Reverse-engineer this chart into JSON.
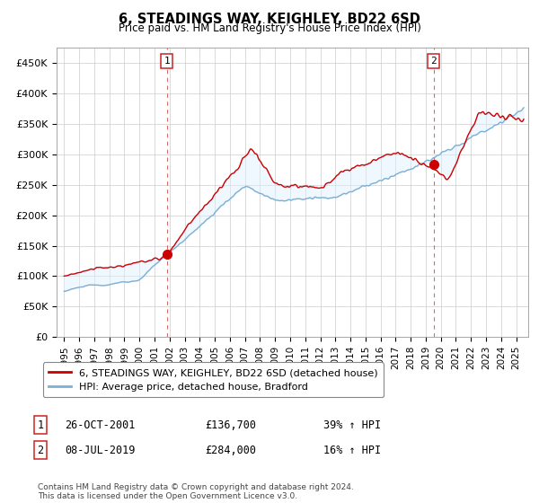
{
  "title": "6, STEADINGS WAY, KEIGHLEY, BD22 6SD",
  "subtitle": "Price paid vs. HM Land Registry's House Price Index (HPI)",
  "legend_line1": "6, STEADINGS WAY, KEIGHLEY, BD22 6SD (detached house)",
  "legend_line2": "HPI: Average price, detached house, Bradford",
  "annotation1_label": "1",
  "annotation1_date": "26-OCT-2001",
  "annotation1_price": "£136,700",
  "annotation1_hpi": "39% ↑ HPI",
  "annotation2_label": "2",
  "annotation2_date": "08-JUL-2019",
  "annotation2_price": "£284,000",
  "annotation2_hpi": "16% ↑ HPI",
  "footnote": "Contains HM Land Registry data © Crown copyright and database right 2024.\nThis data is licensed under the Open Government Licence v3.0.",
  "line_color_red": "#cc0000",
  "line_color_blue": "#7bafd4",
  "fill_color_blue": "#ddeeff",
  "vline_color": "#cc4444",
  "dot_color_red": "#cc0000",
  "background_color": "#ffffff",
  "ylim": [
    0,
    475000
  ],
  "yticks": [
    0,
    50000,
    100000,
    150000,
    200000,
    250000,
    300000,
    350000,
    400000,
    450000
  ],
  "ytick_labels": [
    "£0",
    "£50K",
    "£100K",
    "£150K",
    "£200K",
    "£250K",
    "£300K",
    "£350K",
    "£400K",
    "£450K"
  ],
  "sale1_x": 2001.82,
  "sale1_y": 136700,
  "sale2_x": 2019.52,
  "sale2_y": 284000,
  "xmin": 1994.5,
  "xmax": 2025.8
}
